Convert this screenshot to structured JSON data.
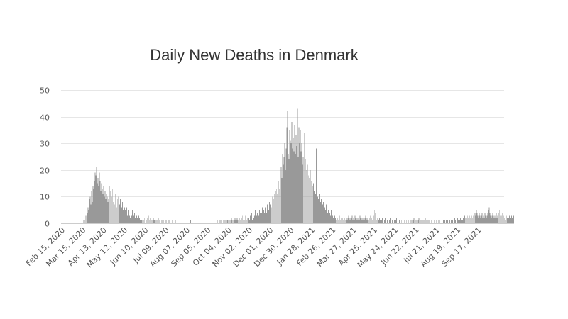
{
  "chart_data": {
    "type": "bar",
    "title": "Daily New Deaths in Denmark",
    "xlabel": "",
    "ylabel": "",
    "ylim": [
      0,
      50
    ],
    "y_ticks": [
      "0",
      "10",
      "20",
      "30",
      "40",
      "50"
    ],
    "x_tick_labels": [
      "Feb 15, 2020",
      "Mar 15, 2020",
      "Apr 13, 2020",
      "May 12, 2020",
      "Jun 10, 2020",
      "Jul 09, 2020",
      "Aug 07, 2020",
      "Sep 05, 2020",
      "Oct 04, 2020",
      "Nov 02, 2020",
      "Dec 01, 2020",
      "Dec 30, 2020",
      "Jan 28, 2021",
      "Feb 26, 2021",
      "Mar 27, 2021",
      "Apr 25, 2021",
      "May 24, 2021",
      "Jun 22, 2021",
      "Jul 21, 2021",
      "Aug 19, 2021",
      "Sep 17, 2021"
    ],
    "x_range": [
      "Feb 15, 2020",
      "Oct 14, 2021"
    ],
    "grid": true,
    "legend": "none",
    "series": [
      {
        "color": "#999999",
        "start": "Feb 15, 2020",
        "values": [
          0,
          0,
          0,
          0,
          0,
          0,
          0,
          0,
          0,
          0,
          0,
          0,
          0,
          0,
          0,
          0,
          0,
          0,
          0,
          0,
          0,
          0,
          0,
          0,
          0,
          0,
          0,
          0,
          0,
          1,
          0,
          1,
          2,
          1,
          3,
          3,
          4,
          6,
          5,
          9,
          10,
          7,
          12,
          8,
          14,
          13,
          16,
          19,
          18,
          21,
          15,
          17,
          14,
          19,
          16,
          12,
          15,
          13,
          11,
          14,
          10,
          12,
          9,
          11,
          10,
          8,
          9,
          14,
          12,
          9,
          10,
          13,
          8,
          9,
          7,
          11,
          15,
          6,
          9,
          10,
          8,
          7,
          9,
          7,
          6,
          8,
          5,
          7,
          6,
          5,
          4,
          6,
          3,
          5,
          4,
          3,
          2,
          4,
          3,
          5,
          2,
          3,
          4,
          2,
          6,
          3,
          2,
          1,
          3,
          2,
          1,
          2,
          1,
          1,
          3,
          1,
          2,
          0,
          1,
          1,
          2,
          1,
          3,
          1,
          2,
          1,
          0,
          1,
          2,
          1,
          1,
          0,
          1,
          0,
          1,
          2,
          0,
          1,
          0,
          0,
          1,
          0,
          1,
          0,
          0,
          0,
          1,
          0,
          0,
          0,
          1,
          0,
          0,
          0,
          0,
          1,
          0,
          0,
          0,
          1,
          0,
          0,
          0,
          0,
          0,
          1,
          0,
          0,
          0,
          0,
          0,
          0,
          1,
          0,
          0,
          0,
          0,
          0,
          0,
          0,
          1,
          0,
          0,
          0,
          0,
          0,
          1,
          0,
          0,
          0,
          0,
          0,
          0,
          1,
          0,
          0,
          0,
          0,
          0,
          0,
          0,
          0,
          0,
          0,
          0,
          0,
          1,
          0,
          0,
          0,
          0,
          0,
          0,
          1,
          0,
          0,
          0,
          1,
          0,
          0,
          0,
          1,
          0,
          1,
          0,
          0,
          1,
          0,
          1,
          0,
          0,
          1,
          1,
          0,
          1,
          0,
          1,
          2,
          1,
          0,
          1,
          1,
          2,
          1,
          1,
          2,
          1,
          0,
          2,
          1,
          1,
          2,
          3,
          1,
          2,
          1,
          3,
          2,
          1,
          2,
          3,
          2,
          1,
          3,
          2,
          4,
          1,
          3,
          2,
          3,
          5,
          2,
          3,
          4,
          2,
          3,
          5,
          4,
          3,
          4,
          6,
          3,
          5,
          4,
          6,
          5,
          4,
          7,
          6,
          5,
          8,
          7,
          9,
          6,
          10,
          8,
          9,
          11,
          10,
          12,
          13,
          11,
          14,
          16,
          13,
          18,
          21,
          17,
          26,
          22,
          25,
          30,
          20,
          28,
          36,
          42,
          26,
          24,
          35,
          31,
          30,
          38,
          28,
          32,
          27,
          37,
          26,
          33,
          29,
          43,
          25,
          36,
          30,
          35,
          27,
          30,
          22,
          25,
          34,
          28,
          24,
          20,
          26,
          22,
          18,
          17,
          21,
          20,
          16,
          18,
          14,
          15,
          12,
          16,
          11,
          28,
          13,
          10,
          9,
          12,
          11,
          8,
          9,
          10,
          7,
          8,
          9,
          6,
          5,
          7,
          6,
          4,
          5,
          6,
          4,
          3,
          5,
          4,
          3,
          2,
          4,
          3,
          2,
          1,
          3,
          2,
          1,
          2,
          3,
          1,
          2,
          1,
          2,
          1,
          3,
          2,
          1,
          2,
          1,
          2,
          3,
          1,
          2,
          1,
          2,
          3,
          1,
          2,
          1,
          3,
          2,
          1,
          2,
          1,
          2,
          1,
          3,
          2,
          1,
          2,
          1,
          2,
          1,
          2,
          3,
          2,
          1,
          2,
          1,
          2,
          3,
          4,
          2,
          1,
          2,
          3,
          5,
          4,
          2,
          1,
          2,
          3,
          1,
          2,
          1,
          2,
          1,
          2,
          1,
          0,
          1,
          2,
          1,
          0,
          1,
          1,
          0,
          1,
          2,
          1,
          0,
          1,
          1,
          0,
          1,
          0,
          1,
          2,
          0,
          1,
          0,
          1,
          2,
          0,
          1,
          0,
          1,
          0,
          1,
          2,
          0,
          1,
          0,
          1,
          1,
          0,
          1,
          0,
          1,
          0,
          1,
          2,
          0,
          1,
          0,
          1,
          0,
          1,
          2,
          0,
          1,
          0,
          1,
          0,
          1,
          0,
          1,
          2,
          0,
          1,
          0,
          1,
          0,
          1,
          0,
          0,
          1,
          0,
          0,
          1,
          0,
          0,
          1,
          2,
          0,
          1,
          0,
          1,
          0,
          0,
          1,
          0,
          1,
          0,
          1,
          0,
          1,
          0,
          1,
          0,
          0,
          1,
          0,
          1,
          0,
          1,
          0,
          1,
          2,
          1,
          0,
          1,
          2,
          1,
          0,
          1,
          2,
          1,
          0,
          1,
          2,
          1,
          3,
          2,
          1,
          2,
          3,
          2,
          1,
          3,
          2,
          4,
          3,
          2,
          3,
          2,
          4,
          3,
          5,
          4,
          3,
          2,
          4,
          3,
          2,
          3,
          4,
          2,
          3,
          2,
          4,
          3,
          2,
          3,
          4,
          5,
          6,
          4,
          3,
          2,
          3,
          4,
          2,
          3,
          2,
          3,
          4,
          2,
          3,
          4,
          5,
          3,
          2,
          3,
          4,
          2,
          3,
          2,
          1,
          2,
          3,
          2,
          1,
          2,
          3,
          1,
          2,
          3,
          2,
          4,
          3
        ]
      }
    ]
  }
}
